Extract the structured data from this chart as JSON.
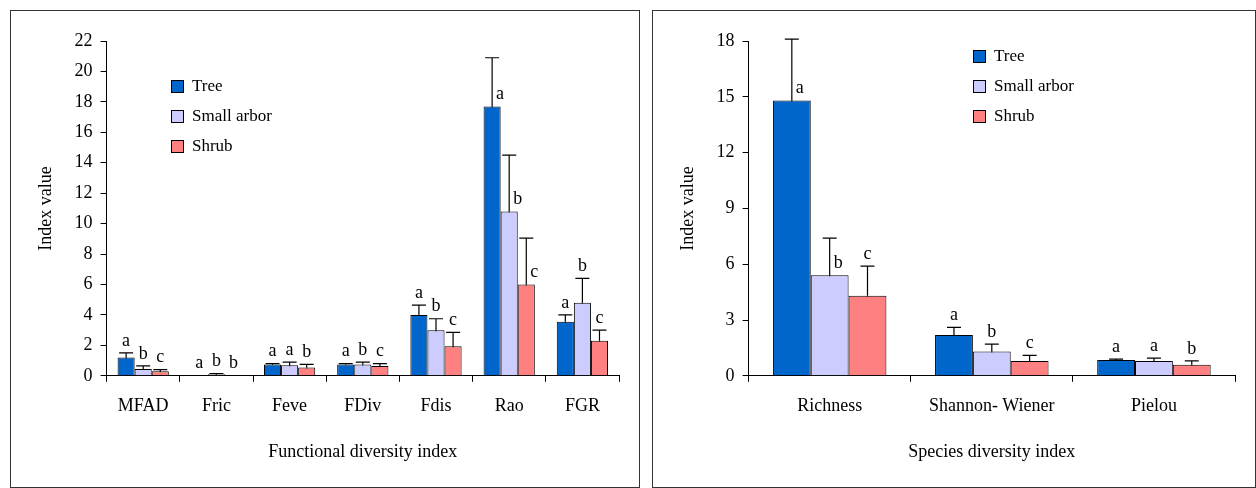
{
  "chart_data": [
    {
      "type": "bar",
      "xlabel": "Functional diversity index",
      "ylabel": "Index value",
      "categories": [
        "MFAD",
        "Fric",
        "Feve",
        "FDiv",
        "Fdis",
        "Rao",
        "FGR"
      ],
      "ylim": [
        0,
        22
      ],
      "yticks": [
        0,
        2,
        4,
        6,
        8,
        10,
        12,
        14,
        16,
        18,
        20,
        22
      ],
      "grid": false,
      "legend": "top left",
      "series": [
        {
          "name": "Tree",
          "color": "#0066cc",
          "values": [
            1.2,
            0.05,
            0.75,
            0.75,
            4.0,
            17.7,
            3.55
          ],
          "errors": [
            0.3,
            null,
            0.05,
            0.05,
            0.65,
            3.2,
            0.45
          ],
          "value_labels": [
            "a",
            "a",
            "a",
            "a",
            "a",
            "a",
            "a"
          ]
        },
        {
          "name": "Small arbor",
          "color": "#ccccff",
          "values": [
            0.45,
            0.1,
            0.7,
            0.75,
            3.0,
            10.8,
            4.8
          ],
          "errors": [
            0.2,
            0.05,
            0.2,
            0.15,
            0.75,
            3.7,
            1.6
          ],
          "value_labels": [
            "b",
            "b",
            "a",
            "b",
            "b",
            "b",
            "b"
          ]
        },
        {
          "name": "Shrub",
          "color": "#ff8080",
          "values": [
            0.3,
            0.05,
            0.55,
            0.65,
            1.95,
            6.0,
            2.3
          ],
          "errors": [
            0.1,
            null,
            0.2,
            0.15,
            0.9,
            3.05,
            0.7
          ],
          "value_labels": [
            "c",
            "b",
            "b",
            "c",
            "c",
            "c",
            "c"
          ]
        }
      ]
    },
    {
      "type": "bar",
      "xlabel": "Species diversity index",
      "ylabel": "Index value",
      "categories": [
        "Richness",
        "Shannon- Wiener",
        "Pielou"
      ],
      "ylim": [
        0,
        18
      ],
      "yticks": [
        0,
        3,
        6,
        9,
        12,
        15,
        18
      ],
      "grid": false,
      "legend": "top",
      "series": [
        {
          "name": "Tree",
          "color": "#0066cc",
          "values": [
            14.8,
            2.2,
            0.85
          ],
          "errors": [
            3.3,
            0.4,
            0.05
          ],
          "value_labels": [
            "a",
            "a",
            "a"
          ]
        },
        {
          "name": "Small arbor",
          "color": "#ccccff",
          "values": [
            5.4,
            1.3,
            0.8
          ],
          "errors": [
            2.0,
            0.4,
            0.15
          ],
          "value_labels": [
            "b",
            "b",
            "a"
          ]
        },
        {
          "name": "Shrub",
          "color": "#ff8080",
          "values": [
            4.3,
            0.8,
            0.6
          ],
          "errors": [
            1.6,
            0.3,
            0.2
          ],
          "value_labels": [
            "c",
            "c",
            "b"
          ]
        }
      ]
    }
  ]
}
